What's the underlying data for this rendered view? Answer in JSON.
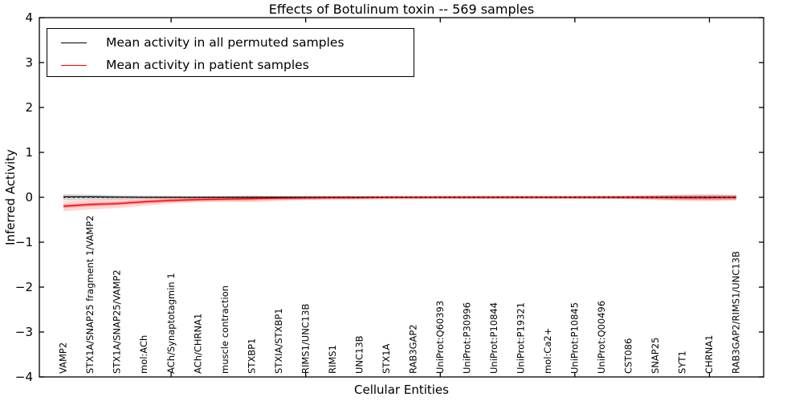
{
  "figure": {
    "title": "Effects of Botulinum toxin -- 569 samples"
  },
  "legend": {
    "entries": [
      {
        "label": "Mean activity in all permuted samples",
        "color": "#000000"
      },
      {
        "label": "Mean activity in patient samples",
        "color": "#ff0000"
      }
    ]
  },
  "chart_data": {
    "type": "line",
    "title": "Effects of Botulinum toxin -- 569 samples",
    "xlabel": "Cellular Entities",
    "ylabel": "Inferred Activity",
    "ylim": [
      -4,
      4
    ],
    "yticks": [
      4,
      3,
      2,
      1,
      0,
      -1,
      -2,
      -3,
      -4
    ],
    "ytick_labels": [
      "4",
      "3",
      "2",
      "1",
      "0",
      "−1",
      "−2",
      "−3",
      "−4"
    ],
    "grid": false,
    "legend_position": "upper left",
    "major_tick_indices": [
      4,
      9,
      14,
      19,
      24
    ],
    "categories": [
      "VAMP2",
      "STX1A/SNAP25 fragment 1/VAMP2",
      "STX1A/SNAP25/VAMP2",
      "mol:ACh",
      "ACh/Synaptotagmin 1",
      "ACh/CHRNA1",
      "muscle contraction",
      "STXBP1",
      "STXIA/STXBP1",
      "RIMS1/UNC13B",
      "RIMS1",
      "UNC13B",
      "STX1A",
      "RAB3GAP2",
      "UniProt:Q60393",
      "UniProt:P30996",
      "UniProt:P10844",
      "UniProt:P19321",
      "mol:Ca2+",
      "UniProt:P10845",
      "UniProt:Q00496",
      "CST086",
      "SNAP25",
      "SYT1",
      "CHRNA1",
      "RAB3GAP2/RIMS1/UNC13B"
    ],
    "series": [
      {
        "name": "Mean activity in all permuted samples",
        "color": "#000000",
        "band_color": "#999999",
        "band_opacity": 0.38,
        "inner_halo": false,
        "values": [
          0.01,
          0.01,
          0.005,
          0,
          0,
          0,
          0,
          0,
          0,
          0,
          0,
          0,
          0,
          0,
          0,
          0,
          0,
          0,
          0,
          0,
          0,
          0,
          0,
          0,
          0,
          0
        ],
        "band_upper": [
          0.07,
          0.06,
          0.05,
          0.04,
          0.035,
          0.03,
          0.03,
          0.03,
          0.025,
          0.025,
          0.02,
          0.02,
          0.02,
          0.02,
          0.02,
          0.02,
          0.02,
          0.02,
          0.02,
          0.02,
          0.025,
          0.03,
          0.045,
          0.06,
          0.065,
          0.06
        ],
        "band_lower": [
          -0.07,
          -0.06,
          -0.05,
          -0.04,
          -0.035,
          -0.03,
          -0.03,
          -0.03,
          -0.025,
          -0.025,
          -0.02,
          -0.02,
          -0.02,
          -0.02,
          -0.02,
          -0.02,
          -0.02,
          -0.02,
          -0.02,
          -0.02,
          -0.025,
          -0.03,
          -0.045,
          -0.06,
          -0.065,
          -0.06
        ]
      },
      {
        "name": "Mean activity in patient samples",
        "color": "#ff0000",
        "band_color": "#ff0000",
        "band_opacity": 0.16,
        "inner_halo": true,
        "values": [
          -0.2,
          -0.16,
          -0.14,
          -0.1,
          -0.07,
          -0.05,
          -0.04,
          -0.03,
          -0.02,
          -0.015,
          -0.01,
          -0.01,
          -0.005,
          -0.005,
          0,
          0,
          0,
          0,
          0,
          0,
          0,
          0,
          -0.005,
          -0.01,
          -0.01,
          -0.005
        ],
        "band_upper": [
          -0.09,
          -0.06,
          -0.04,
          -0.02,
          0,
          0.01,
          0.02,
          0.04,
          0.03,
          0.02,
          0.02,
          0.015,
          0.015,
          0.015,
          0.015,
          0.015,
          0.015,
          0.015,
          0.015,
          0.015,
          0.015,
          0.02,
          0.04,
          0.05,
          0.055,
          0.045
        ],
        "band_lower": [
          -0.31,
          -0.27,
          -0.24,
          -0.19,
          -0.14,
          -0.11,
          -0.1,
          -0.11,
          -0.08,
          -0.055,
          -0.045,
          -0.04,
          -0.03,
          -0.03,
          -0.03,
          -0.03,
          -0.03,
          -0.03,
          -0.03,
          -0.03,
          -0.03,
          -0.04,
          -0.06,
          -0.08,
          -0.085,
          -0.07
        ]
      }
    ],
    "zero_line": {
      "y": 0,
      "color": "#000000",
      "style": "dotted"
    }
  }
}
